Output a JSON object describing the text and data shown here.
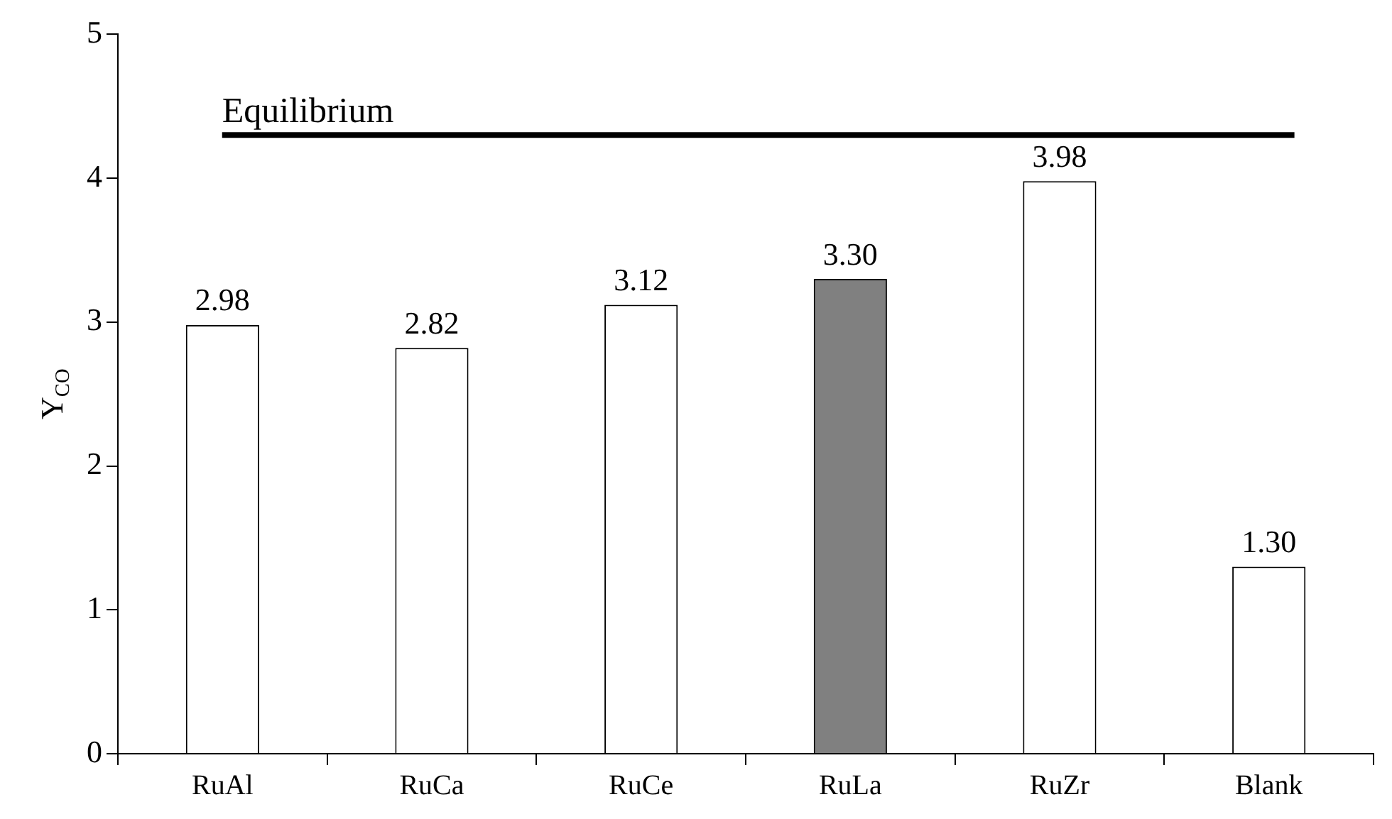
{
  "chart_data": {
    "type": "bar",
    "ylabel": "Y$_{CO}$",
    "categories": [
      "RuAl",
      "RuCa",
      "RuCe",
      "RuLa",
      "RuZr",
      "Blank"
    ],
    "values": [
      2.98,
      2.82,
      3.12,
      3.3,
      3.98,
      1.3
    ],
    "value_labels": [
      "2.98",
      "2.82",
      "3.12",
      "3.30",
      "3.98",
      "1.30"
    ],
    "colors": [
      "#ffffff",
      "#ffffff",
      "#ffffff",
      "#808080",
      "#ffffff",
      "#ffffff"
    ],
    "ylim": [
      0,
      5
    ],
    "yticks": [
      0,
      1,
      2,
      3,
      4,
      5
    ],
    "grid": false,
    "legend": false,
    "ref_lines": [
      {
        "axis": "y",
        "value": 4.3,
        "label": "Equilibrium",
        "color": "#000000"
      }
    ]
  }
}
